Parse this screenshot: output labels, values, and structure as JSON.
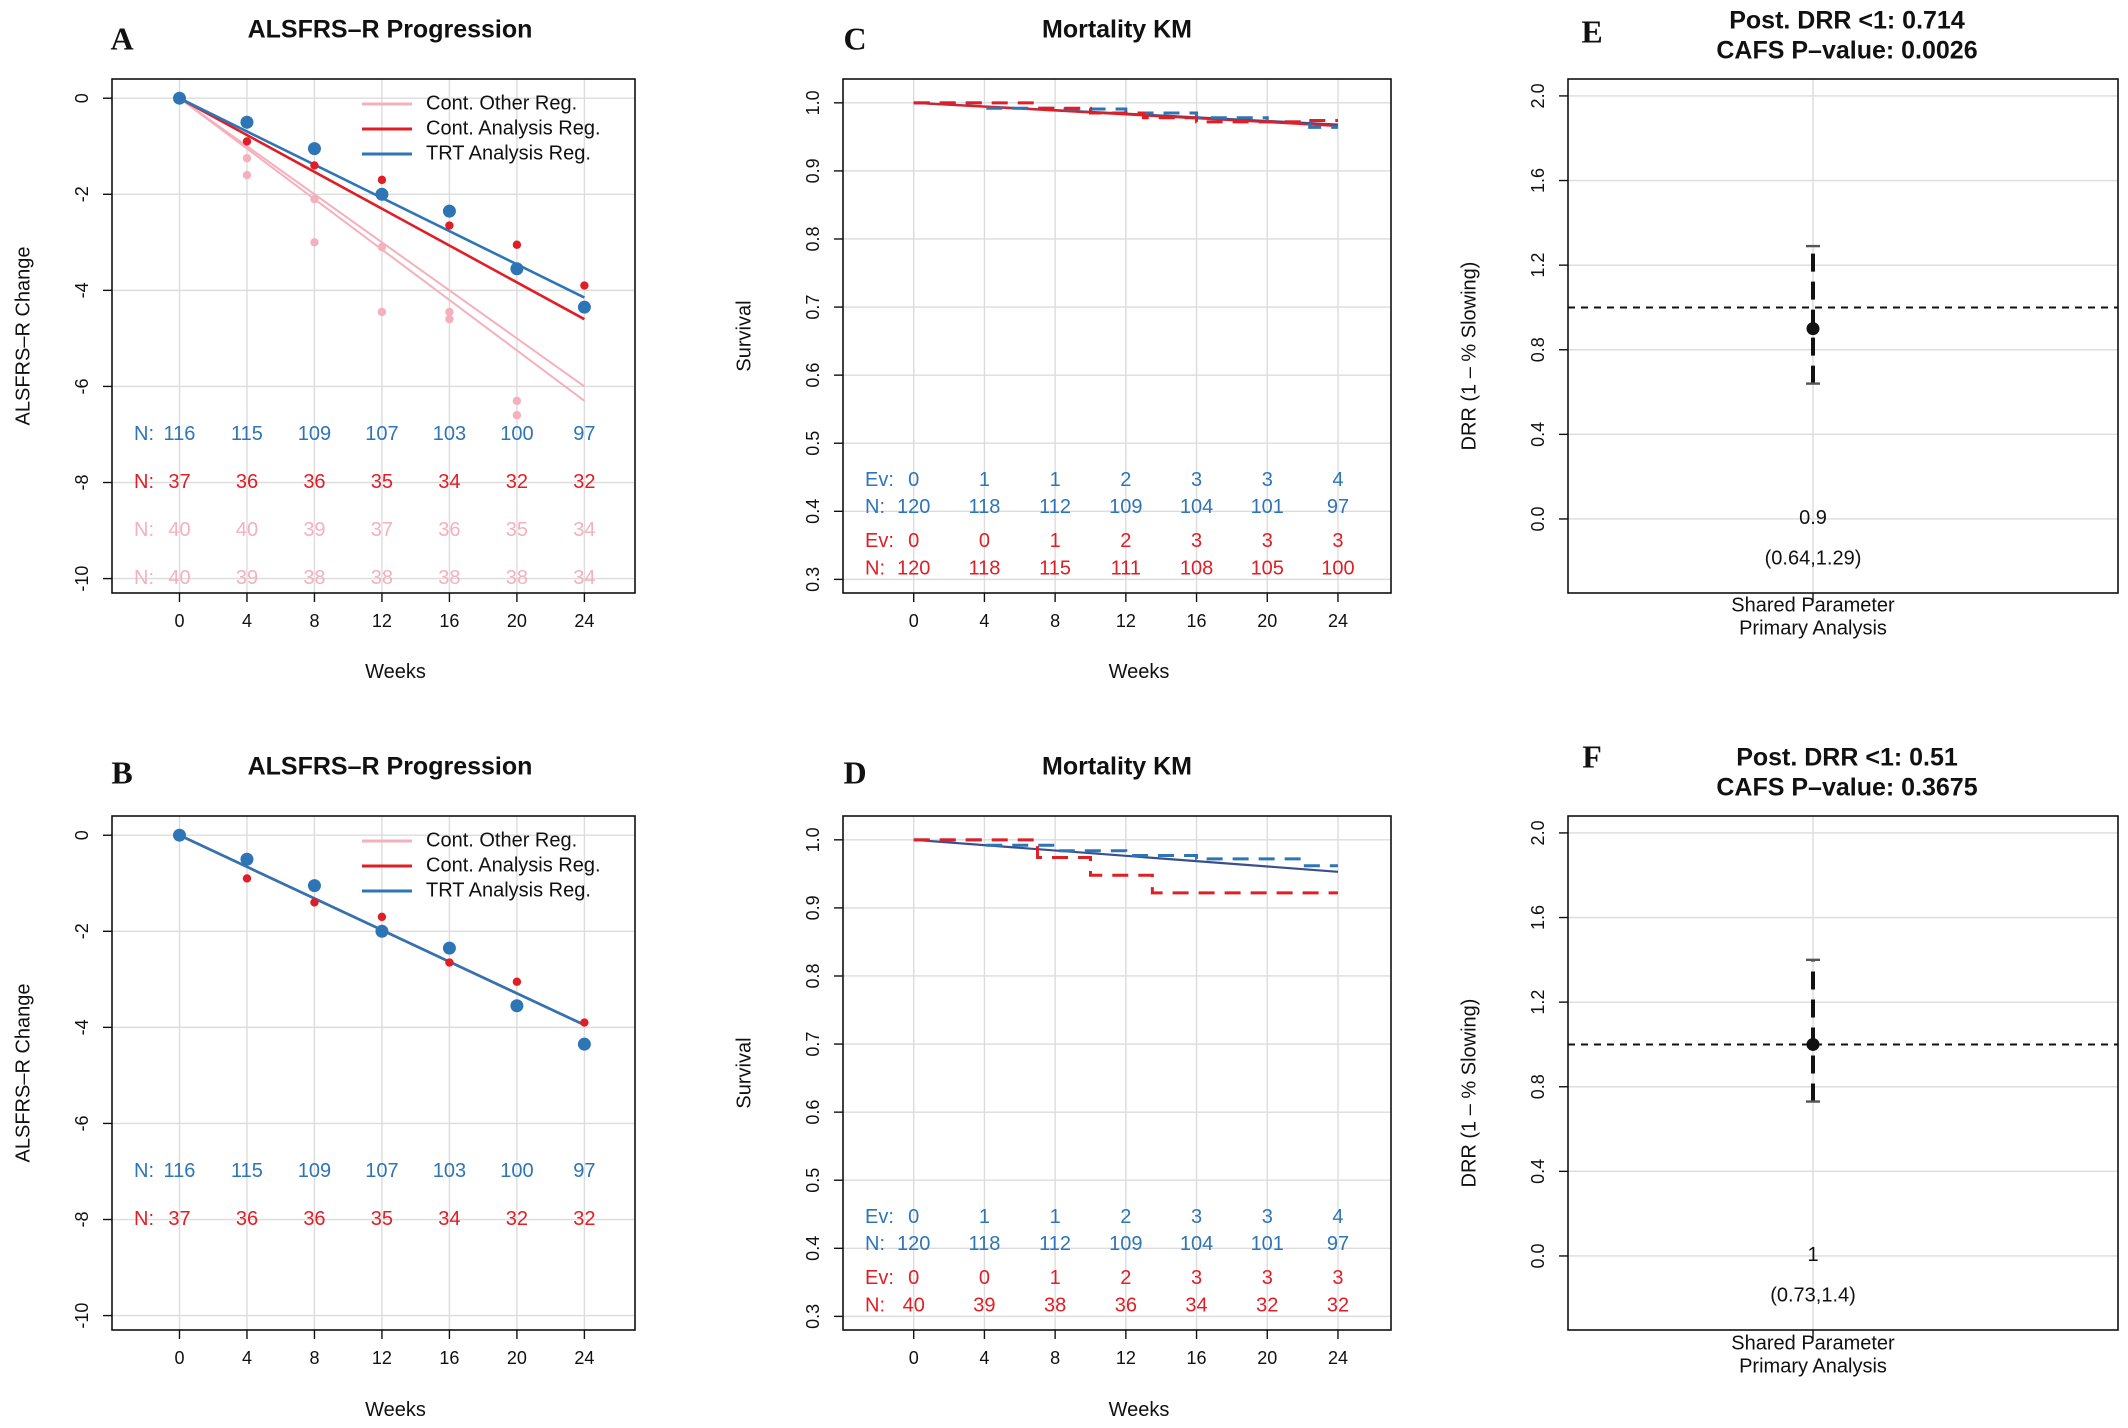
{
  "colors": {
    "trt": "#2e75b6",
    "cont": "#e01e26",
    "other": "#f4b1bd",
    "black": "#111111",
    "grid": "#dcdcdc"
  },
  "legend_labels": [
    "Cont. Other Reg.",
    "Cont. Analysis Reg.",
    "TRT Analysis Reg."
  ],
  "chart_data": [
    {
      "id": "A",
      "letter": "A",
      "type": "line",
      "title": "ALSFRS–R Progression",
      "xlabel": "Weeks",
      "ylabel": "ALSFRS–R Change",
      "xlim": [
        -4,
        27
      ],
      "ylim": [
        -10.3,
        0.4
      ],
      "x_ticks": [
        0,
        4,
        8,
        12,
        16,
        20,
        24
      ],
      "y_ticks": [
        0,
        -2,
        -4,
        -6,
        -8,
        -10
      ],
      "grid": true,
      "legend_position": "top-right",
      "lines": [
        {
          "series": "other",
          "x": [
            0,
            24
          ],
          "y": [
            0,
            -6.0
          ]
        },
        {
          "series": "other",
          "x": [
            0,
            24
          ],
          "y": [
            0,
            -6.3
          ]
        },
        {
          "series": "cont",
          "x": [
            0,
            24
          ],
          "y": [
            0,
            -4.6
          ]
        },
        {
          "series": "trt",
          "x": [
            0,
            24
          ],
          "y": [
            0,
            -4.15
          ]
        }
      ],
      "points": [
        {
          "series": "other",
          "x": [
            0,
            4,
            4,
            8,
            8,
            12,
            12,
            16,
            16,
            20,
            20
          ],
          "y": [
            0,
            -1.25,
            -1.6,
            -2.1,
            -3.0,
            -3.1,
            -4.45,
            -4.45,
            -4.6,
            -6.3,
            -6.6
          ]
        },
        {
          "series": "cont",
          "x": [
            0,
            4,
            8,
            12,
            16,
            20,
            24
          ],
          "y": [
            0,
            -0.9,
            -1.4,
            -1.7,
            -2.65,
            -3.05,
            -3.9
          ]
        },
        {
          "series": "trt",
          "x": [
            0,
            4,
            8,
            12,
            16,
            20,
            24
          ],
          "y": [
            0,
            -0.5,
            -1.05,
            -2.0,
            -2.35,
            -3.55,
            -4.35
          ]
        }
      ],
      "count_rows": [
        {
          "series": "trt",
          "label": "N:",
          "y": -7.0,
          "values": [
            "116",
            "115",
            "109",
            "107",
            "103",
            "100",
            "97"
          ]
        },
        {
          "series": "cont",
          "label": "N:",
          "y": -8.0,
          "values": [
            "37",
            "36",
            "36",
            "35",
            "34",
            "32",
            "32"
          ]
        },
        {
          "series": "other",
          "label": "N:",
          "y": -9.0,
          "values": [
            "40",
            "40",
            "39",
            "37",
            "36",
            "35",
            "34"
          ]
        },
        {
          "series": "other",
          "label": "N:",
          "y": -10.0,
          "values": [
            "40",
            "39",
            "38",
            "38",
            "38",
            "38",
            "34"
          ]
        }
      ]
    },
    {
      "id": "B",
      "letter": "B",
      "type": "line",
      "title": "ALSFRS–R Progression",
      "xlabel": "Weeks",
      "ylabel": "ALSFRS–R Change",
      "xlim": [
        -4,
        27
      ],
      "ylim": [
        -10.3,
        0.4
      ],
      "x_ticks": [
        0,
        4,
        8,
        12,
        16,
        20,
        24
      ],
      "y_ticks": [
        0,
        -2,
        -4,
        -6,
        -8,
        -10
      ],
      "grid": true,
      "legend_position": "top-right",
      "lines": [
        {
          "series": "cont",
          "x": [
            0,
            24
          ],
          "y": [
            0,
            -3.95
          ]
        },
        {
          "series": "trt",
          "x": [
            0,
            24
          ],
          "y": [
            0,
            -3.95
          ]
        }
      ],
      "points": [
        {
          "series": "cont",
          "x": [
            0,
            4,
            8,
            12,
            16,
            20,
            24
          ],
          "y": [
            0,
            -0.9,
            -1.4,
            -1.7,
            -2.65,
            -3.05,
            -3.9
          ]
        },
        {
          "series": "trt",
          "x": [
            0,
            4,
            8,
            12,
            16,
            20,
            24
          ],
          "y": [
            0,
            -0.5,
            -1.05,
            -2.0,
            -2.35,
            -3.55,
            -4.35
          ]
        }
      ],
      "count_rows": [
        {
          "series": "trt",
          "label": "N:",
          "y": -7.0,
          "values": [
            "116",
            "115",
            "109",
            "107",
            "103",
            "100",
            "97"
          ]
        },
        {
          "series": "cont",
          "label": "N:",
          "y": -8.0,
          "values": [
            "37",
            "36",
            "36",
            "35",
            "34",
            "32",
            "32"
          ]
        }
      ]
    },
    {
      "id": "C",
      "letter": "C",
      "type": "line",
      "title": "Mortality KM",
      "xlabel": "Weeks",
      "ylabel": "Survival",
      "xlim": [
        -4,
        27
      ],
      "ylim": [
        0.28,
        1.035
      ],
      "x_ticks": [
        0,
        4,
        8,
        12,
        16,
        20,
        24
      ],
      "y_ticks": [
        1.0,
        0.9,
        0.8,
        0.7,
        0.6,
        0.5,
        0.4,
        0.3
      ],
      "grid": true,
      "fit_lines": [
        {
          "series": "trt",
          "x": [
            0,
            24
          ],
          "y": [
            1.0,
            0.968
          ]
        },
        {
          "series": "cont",
          "x": [
            0,
            24
          ],
          "y": [
            1.0,
            0.966
          ]
        }
      ],
      "km_steps": [
        {
          "series": "trt",
          "x": [
            0,
            4,
            8,
            12,
            16,
            20,
            22.4,
            24
          ],
          "y": [
            1.0,
            0.992,
            0.991,
            0.985,
            0.978,
            0.972,
            0.964,
            0.964
          ]
        },
        {
          "series": "cont",
          "x": [
            0,
            7,
            10,
            13,
            16,
            22,
            24
          ],
          "y": [
            1.0,
            0.992,
            0.985,
            0.978,
            0.972,
            0.974,
            0.974
          ]
        }
      ],
      "count_rows": [
        {
          "series": "trt",
          "label": "Ev:",
          "y": 0.445,
          "values": [
            "0",
            "1",
            "1",
            "2",
            "3",
            "3",
            "4"
          ]
        },
        {
          "series": "trt",
          "label": "N:",
          "y": 0.405,
          "values": [
            "120",
            "118",
            "112",
            "109",
            "104",
            "101",
            "97"
          ]
        },
        {
          "series": "cont",
          "label": "Ev:",
          "y": 0.355,
          "values": [
            "0",
            "0",
            "1",
            "2",
            "3",
            "3",
            "3"
          ]
        },
        {
          "series": "cont",
          "label": "N:",
          "y": 0.315,
          "values": [
            "120",
            "118",
            "115",
            "111",
            "108",
            "105",
            "100"
          ]
        }
      ]
    },
    {
      "id": "D",
      "letter": "D",
      "type": "line",
      "title": "Mortality KM",
      "xlabel": "Weeks",
      "ylabel": "Survival",
      "xlim": [
        -4,
        27
      ],
      "ylim": [
        0.28,
        1.035
      ],
      "x_ticks": [
        0,
        4,
        8,
        12,
        16,
        20,
        24
      ],
      "y_ticks": [
        1.0,
        0.9,
        0.8,
        0.7,
        0.6,
        0.5,
        0.4,
        0.3
      ],
      "grid": true,
      "fit_lines": [
        {
          "series": "trt",
          "x": [
            0,
            24
          ],
          "y": [
            1.0,
            0.953
          ]
        }
      ],
      "km_steps": [
        {
          "series": "trt",
          "x": [
            0,
            4,
            8,
            12,
            16,
            22,
            24
          ],
          "y": [
            1.0,
            0.992,
            0.984,
            0.977,
            0.972,
            0.962,
            0.962
          ]
        },
        {
          "series": "cont",
          "x": [
            0,
            7,
            10,
            13.5,
            24
          ],
          "y": [
            1.0,
            0.974,
            0.948,
            0.922,
            0.922
          ]
        }
      ],
      "count_rows": [
        {
          "series": "trt",
          "label": "Ev:",
          "y": 0.445,
          "values": [
            "0",
            "1",
            "1",
            "2",
            "3",
            "3",
            "4"
          ]
        },
        {
          "series": "trt",
          "label": "N:",
          "y": 0.405,
          "values": [
            "120",
            "118",
            "112",
            "109",
            "104",
            "101",
            "97"
          ]
        },
        {
          "series": "cont",
          "label": "Ev:",
          "y": 0.355,
          "values": [
            "0",
            "0",
            "1",
            "2",
            "3",
            "3",
            "3"
          ]
        },
        {
          "series": "cont",
          "label": "N:",
          "y": 0.315,
          "values": [
            "40",
            "39",
            "38",
            "36",
            "34",
            "32",
            "32"
          ]
        }
      ]
    },
    {
      "id": "E",
      "letter": "E",
      "type": "scatter",
      "title_lines": [
        "Post. DRR <1: 0.714",
        "CAFS P–value: 0.0026"
      ],
      "ylabel": "DRR (1 – % Slowing)",
      "category_lines": [
        "Shared Parameter",
        "Primary Analysis"
      ],
      "ylim": [
        -0.35,
        2.08
      ],
      "y_ticks": [
        2.0,
        1.6,
        1.2,
        0.8,
        0.4,
        0.0
      ],
      "reference_line": 1.0,
      "grid": true,
      "estimate": 0.9,
      "ci": [
        0.64,
        1.29
      ],
      "estimate_label": "0.9",
      "ci_label": "(0.64,1.29)",
      "label_y": [
        0.0,
        -0.19
      ]
    },
    {
      "id": "F",
      "letter": "F",
      "type": "scatter",
      "title_lines": [
        "Post. DRR <1: 0.51",
        "CAFS P–value: 0.3675"
      ],
      "ylabel": "DRR (1 – % Slowing)",
      "category_lines": [
        "Shared Parameter",
        "Primary Analysis"
      ],
      "ylim": [
        -0.35,
        2.08
      ],
      "y_ticks": [
        2.0,
        1.6,
        1.2,
        0.8,
        0.4,
        0.0
      ],
      "reference_line": 1.0,
      "grid": true,
      "estimate": 1.0,
      "ci": [
        0.73,
        1.4
      ],
      "estimate_label": "1",
      "ci_label": "(0.73,1.4)",
      "label_y": [
        0.0,
        -0.19
      ]
    }
  ]
}
